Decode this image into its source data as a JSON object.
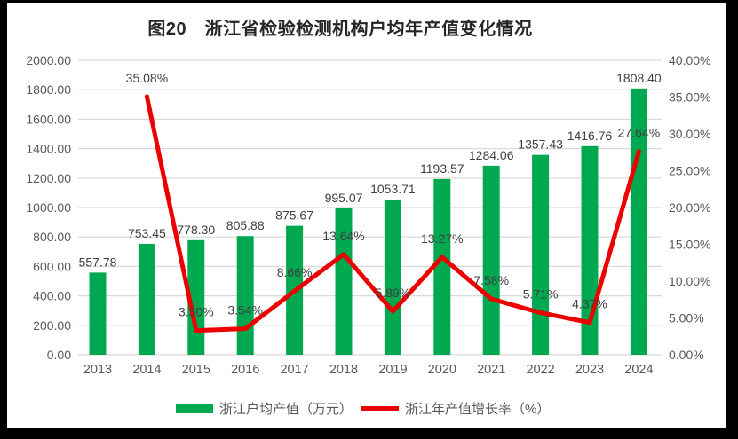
{
  "title": "图20　浙江省检验检测机构户均年产值变化情况",
  "chart_data": {
    "type": "combo-bar-line",
    "title": "图20　浙江省检验检测机构户均年产值变化情况",
    "categories": [
      "2013",
      "2014",
      "2015",
      "2016",
      "2017",
      "2018",
      "2019",
      "2020",
      "2021",
      "2022",
      "2023",
      "2024"
    ],
    "series": [
      {
        "name": "浙江户均产值（万元）",
        "type": "bar",
        "axis": "left",
        "color": "#00A850",
        "values": [
          557.78,
          753.45,
          778.3,
          805.88,
          875.67,
          995.07,
          1053.71,
          1193.57,
          1284.06,
          1357.43,
          1416.76,
          1808.4
        ],
        "labels": [
          "557.78",
          "753.45",
          "778.30",
          "805.88",
          "875.67",
          "995.07",
          "1053.71",
          "1193.57",
          "1284.06",
          "1357.43",
          "1416.76",
          "1808.40"
        ]
      },
      {
        "name": "浙江年产值增长率（%）",
        "type": "line",
        "axis": "right",
        "color": "#ED0000",
        "values": [
          null,
          35.08,
          3.3,
          3.54,
          8.66,
          13.64,
          5.89,
          13.27,
          7.58,
          5.71,
          4.37,
          27.64
        ],
        "labels": [
          null,
          "35.08%",
          "3.30%",
          "3.54%",
          "8.66%",
          "13.64%",
          "5.89%",
          "13.27%",
          "7.58%",
          "5.71%",
          "4.37%",
          "27.64%"
        ]
      }
    ],
    "left_axis": {
      "min": 0,
      "max": 2000,
      "step": 200,
      "tick_labels": [
        "2000.00",
        "1800.00",
        "1600.00",
        "1400.00",
        "1200.00",
        "1000.00",
        "800.00",
        "600.00",
        "400.00",
        "200.00",
        "0.00"
      ]
    },
    "right_axis": {
      "min": 0,
      "max": 40,
      "step": 5,
      "tick_labels": [
        "40.00%",
        "35.00%",
        "30.00%",
        "25.00%",
        "20.00%",
        "15.00%",
        "10.00%",
        "5.00%",
        "0.00%"
      ]
    },
    "grid": true,
    "legend_position": "bottom"
  },
  "legend": {
    "items": [
      {
        "label": "浙江户均产值（万元）",
        "color": "#00A850",
        "type": "bar"
      },
      {
        "label": "浙江年产值增长率（%）",
        "color": "#ED0000",
        "type": "line"
      }
    ]
  },
  "colors": {
    "bar_green": "#00A850",
    "line_red": "#ED0000",
    "gridline": "#D9D9D9",
    "tick_text": "#595959",
    "data_label_text": "#404040",
    "title_text": "#262626",
    "background": "#FFFFFF",
    "frame": "#000000"
  }
}
